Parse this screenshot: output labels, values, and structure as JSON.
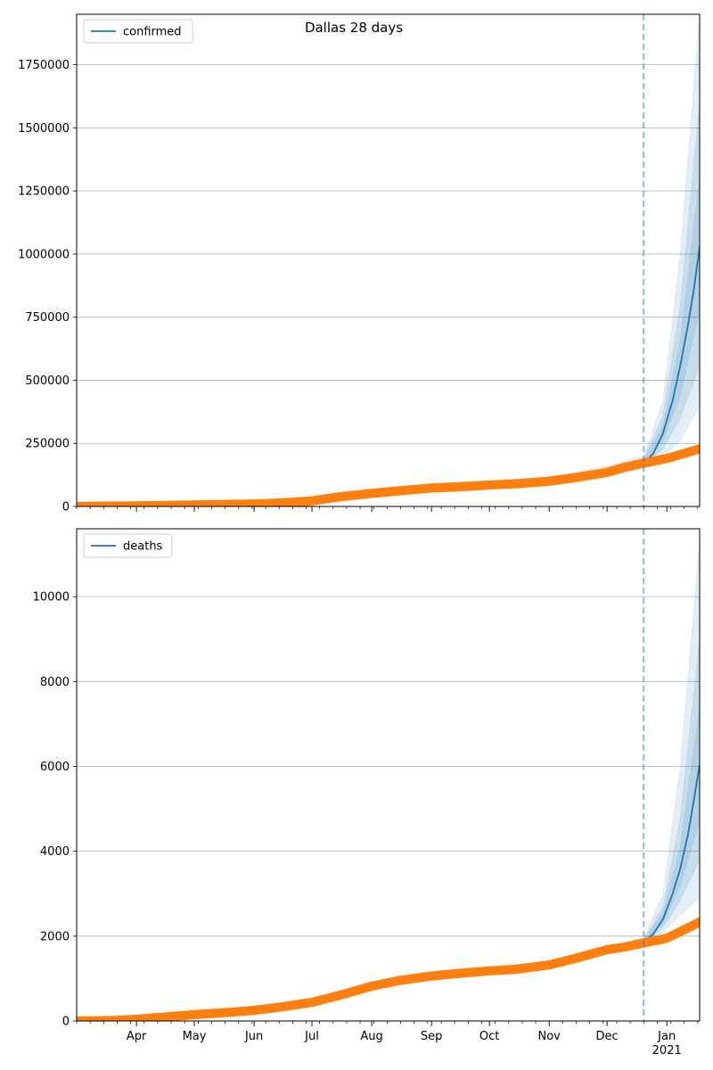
{
  "title": "Dallas 28 days",
  "colors": {
    "model": "#1f77b4",
    "observed": "#ff7f0e",
    "grid": "#b0b0b0",
    "cutoff": "#1f77b4"
  },
  "x_axis": {
    "month_labels": [
      "Apr",
      "May",
      "Jun",
      "Jul",
      "Aug",
      "Sep",
      "Oct",
      "Nov",
      "Dec",
      "Jan"
    ],
    "year_label": "2021",
    "range": [
      "2020-03-01",
      "2021-01-18"
    ],
    "forecast_start": "2020-12-20"
  },
  "chart_data": [
    {
      "type": "line",
      "name": "confirmed",
      "legend": "confirmed",
      "legend_position": "top-left",
      "grid": "horizontal",
      "ylim": [
        0,
        1950000
      ],
      "yticks": [
        0,
        250000,
        500000,
        750000,
        1000000,
        1250000,
        1500000,
        1750000
      ],
      "ytick_labels": [
        "0",
        "250000",
        "500000",
        "750000",
        "1000000",
        "1250000",
        "1500000",
        "1750000"
      ],
      "observed": {
        "x": [
          "2020-03-01",
          "2020-04-01",
          "2020-05-01",
          "2020-06-01",
          "2020-06-15",
          "2020-07-01",
          "2020-07-15",
          "2020-08-01",
          "2020-08-15",
          "2020-09-01",
          "2020-09-15",
          "2020-10-01",
          "2020-10-15",
          "2020-11-01",
          "2020-11-15",
          "2020-12-01",
          "2020-12-10",
          "2020-12-20",
          "2021-01-01",
          "2021-01-10",
          "2021-01-18"
        ],
        "y": [
          0,
          2500,
          6000,
          10000,
          14000,
          22000,
          38000,
          52000,
          62000,
          73000,
          78000,
          85000,
          90000,
          100000,
          115000,
          135000,
          155000,
          172000,
          190000,
          210000,
          228000
        ]
      },
      "model": {
        "x": [
          "2020-03-01",
          "2020-04-01",
          "2020-05-01",
          "2020-06-01",
          "2020-07-01",
          "2020-08-01",
          "2020-09-01",
          "2020-10-01",
          "2020-11-01",
          "2020-12-01",
          "2020-12-20",
          "2020-12-25",
          "2020-12-30",
          "2021-01-04",
          "2021-01-08",
          "2021-01-12",
          "2021-01-15",
          "2021-01-18"
        ],
        "y": [
          0,
          2500,
          6000,
          10000,
          22000,
          52000,
          73000,
          85000,
          100000,
          135000,
          172000,
          210000,
          290000,
          420000,
          560000,
          720000,
          860000,
          1030000
        ]
      },
      "bands": [
        {
          "x": [
            "2020-10-01",
            "2020-11-01",
            "2020-12-01",
            "2020-12-20",
            "2020-12-30",
            "2021-01-08",
            "2021-01-18"
          ],
          "lower": [
            78000,
            92000,
            120000,
            150000,
            200000,
            260000,
            400000
          ],
          "upper": [
            100000,
            118000,
            160000,
            200000,
            420000,
            1000000,
            1950000
          ]
        },
        {
          "x": [
            "2020-10-01",
            "2020-11-01",
            "2020-12-01",
            "2020-12-20",
            "2020-12-30",
            "2021-01-08",
            "2021-01-18"
          ],
          "lower": [
            82000,
            96000,
            126000,
            158000,
            230000,
            350000,
            560000
          ],
          "upper": [
            94000,
            110000,
            150000,
            188000,
            360000,
            800000,
            1600000
          ]
        },
        {
          "x": [
            "2020-10-01",
            "2020-11-01",
            "2020-12-01",
            "2020-12-20",
            "2020-12-30",
            "2021-01-08",
            "2021-01-18"
          ],
          "lower": [
            85000,
            99000,
            130000,
            164000,
            260000,
            440000,
            780000
          ],
          "upper": [
            90000,
            105000,
            142000,
            180000,
            320000,
            660000,
            1300000
          ]
        }
      ]
    },
    {
      "type": "line",
      "name": "deaths",
      "legend": "deaths",
      "legend_position": "top-left",
      "grid": "horizontal",
      "ylim": [
        0,
        11600
      ],
      "yticks": [
        0,
        2000,
        4000,
        6000,
        8000,
        10000
      ],
      "ytick_labels": [
        "0",
        "2000",
        "4000",
        "6000",
        "8000",
        "10000"
      ],
      "observed": {
        "x": [
          "2020-03-01",
          "2020-03-20",
          "2020-04-01",
          "2020-04-15",
          "2020-05-01",
          "2020-05-15",
          "2020-06-01",
          "2020-06-15",
          "2020-07-01",
          "2020-07-15",
          "2020-08-01",
          "2020-08-15",
          "2020-09-01",
          "2020-09-15",
          "2020-10-01",
          "2020-10-15",
          "2020-11-01",
          "2020-11-15",
          "2020-12-01",
          "2020-12-10",
          "2020-12-18",
          "2021-01-01",
          "2021-01-10",
          "2021-01-18"
        ],
        "y": [
          0,
          10,
          40,
          90,
          150,
          190,
          250,
          330,
          440,
          600,
          820,
          950,
          1060,
          1120,
          1180,
          1220,
          1320,
          1480,
          1680,
          1740,
          1820,
          1950,
          2150,
          2330
        ]
      },
      "model": {
        "x": [
          "2020-03-01",
          "2020-04-01",
          "2020-05-01",
          "2020-06-01",
          "2020-07-01",
          "2020-08-01",
          "2020-09-01",
          "2020-10-01",
          "2020-11-01",
          "2020-12-01",
          "2020-12-20",
          "2020-12-25",
          "2020-12-30",
          "2021-01-04",
          "2021-01-08",
          "2021-01-12",
          "2021-01-15",
          "2021-01-18"
        ],
        "y": [
          0,
          40,
          150,
          250,
          440,
          820,
          1060,
          1180,
          1320,
          1680,
          1860,
          2050,
          2400,
          3000,
          3600,
          4400,
          5200,
          6050
        ]
      },
      "bands": [
        {
          "x": [
            "2020-10-01",
            "2020-11-01",
            "2020-12-01",
            "2020-12-20",
            "2020-12-30",
            "2021-01-08",
            "2021-01-18"
          ],
          "lower": [
            1150,
            1290,
            1640,
            1780,
            2100,
            2500,
            2900
          ],
          "upper": [
            1220,
            1360,
            1740,
            1960,
            3000,
            6000,
            11300
          ]
        },
        {
          "x": [
            "2020-10-01",
            "2020-11-01",
            "2020-12-01",
            "2020-12-20",
            "2020-12-30",
            "2021-01-08",
            "2021-01-18"
          ],
          "lower": [
            1160,
            1300,
            1655,
            1805,
            2200,
            2850,
            3800
          ],
          "upper": [
            1205,
            1345,
            1720,
            1920,
            2700,
            4800,
            9000
          ]
        },
        {
          "x": [
            "2020-10-01",
            "2020-11-01",
            "2020-12-01",
            "2020-12-20",
            "2020-12-30",
            "2021-01-08",
            "2021-01-18"
          ],
          "lower": [
            1170,
            1310,
            1665,
            1825,
            2300,
            3200,
            4700
          ],
          "upper": [
            1195,
            1335,
            1700,
            1890,
            2550,
            4100,
            7400
          ]
        }
      ]
    }
  ]
}
